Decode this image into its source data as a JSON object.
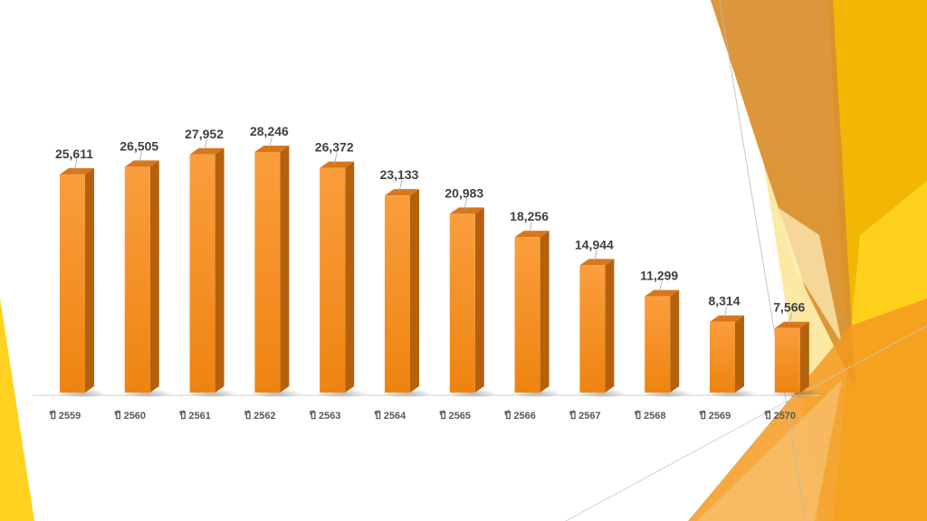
{
  "theme": {
    "bar_front_top": "#FA9E3D",
    "bar_front_bottom": "#EE8410",
    "bar_side": "#B5600D",
    "bar_top": "#D9761A",
    "value_label_color": "#404040",
    "tick_label_color": "#595959",
    "decor_gold": "#F2B705",
    "decor_yellow": "#FFD21F",
    "decor_orange": "#F39A1F",
    "decor_brown": "#D98E2B"
  },
  "chart_data": {
    "type": "bar",
    "title": "",
    "xlabel": "",
    "ylabel": "",
    "categories": [
      "ปี 2559",
      "ปี 2560",
      "ปี 2561",
      "ปี 2562",
      "ปี 2563",
      "ปี 2564",
      "ปี 2565",
      "ปี 2566",
      "ปี 2567",
      "ปี 2568",
      "ปี 2569",
      "ปี 2570"
    ],
    "values": [
      25611,
      26505,
      27952,
      28246,
      26372,
      23133,
      20983,
      18256,
      14944,
      11299,
      8314,
      7566
    ],
    "value_labels": [
      "25,611",
      "26,505",
      "27,952",
      "28,246",
      "26,372",
      "23,133",
      "20,983",
      "18,256",
      "14,944",
      "11,299",
      "8,314",
      "7,566"
    ],
    "ylim": [
      0,
      28246
    ],
    "grid": false,
    "legend": "none",
    "style": "3d-column"
  }
}
